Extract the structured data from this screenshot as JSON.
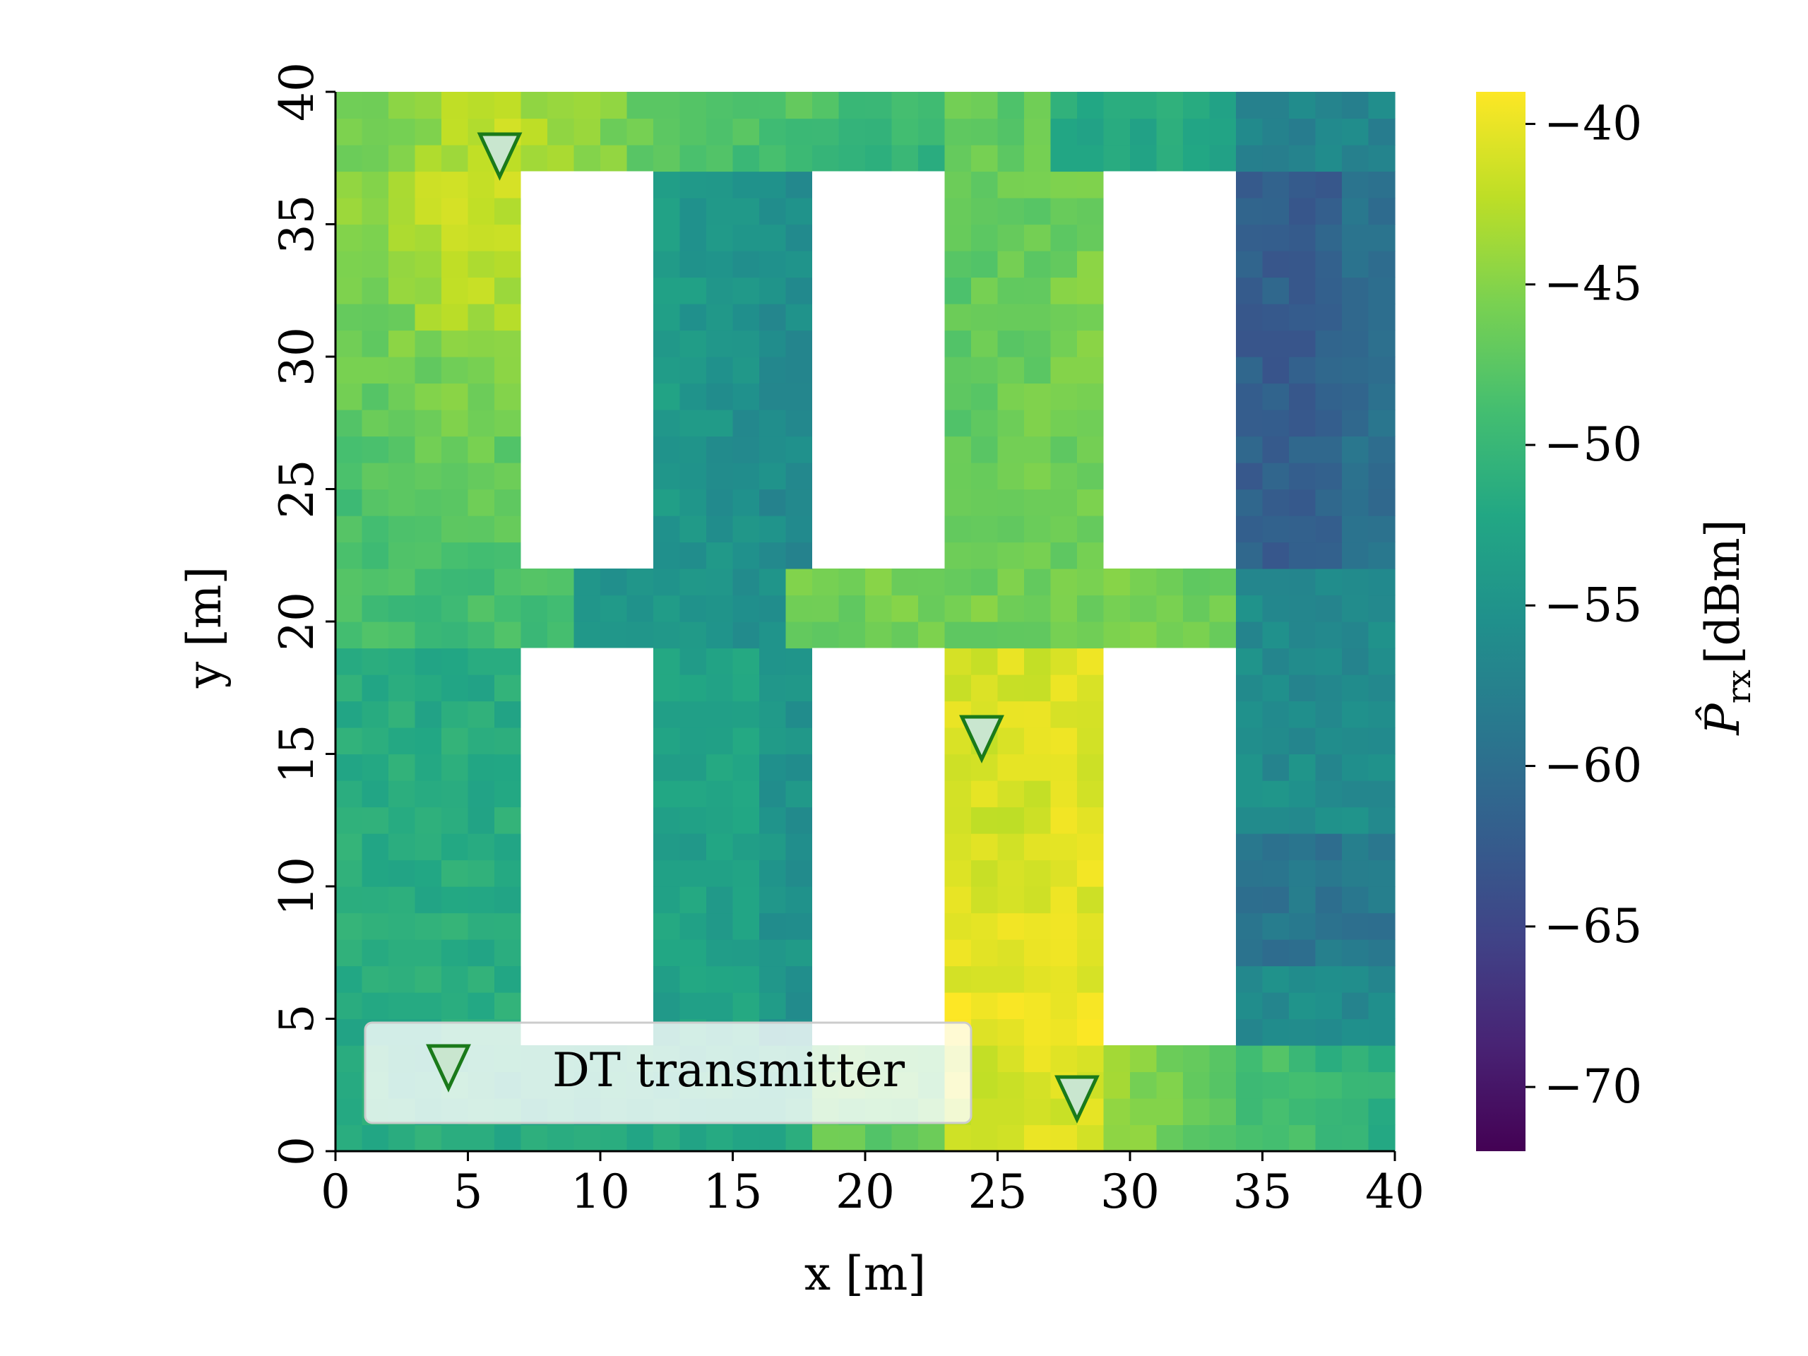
{
  "chart_data": {
    "type": "heatmap",
    "title": "",
    "xlabel": "x [m]",
    "ylabel": "y [m]",
    "colorbar_label": "P̂rx [dBm]",
    "colorbar_label_symbol": "P̂",
    "colorbar_label_sub": "rx",
    "colorbar_label_unit": "[dBm]",
    "colormap": "viridis",
    "xlim": [
      0,
      40
    ],
    "ylim": [
      0,
      40
    ],
    "clim": [
      -72,
      -39
    ],
    "cell_size_m": 1,
    "xticks": [
      0,
      5,
      10,
      15,
      20,
      25,
      30,
      35,
      40
    ],
    "yticks": [
      0,
      5,
      10,
      15,
      20,
      25,
      30,
      35,
      40
    ],
    "colorbar_ticks": [
      -40,
      -45,
      -50,
      -55,
      -60,
      -65,
      -70
    ],
    "xtick_labels": [
      "0",
      "5",
      "10",
      "15",
      "20",
      "25",
      "30",
      "35",
      "40"
    ],
    "ytick_labels": [
      "0",
      "5",
      "10",
      "15",
      "20",
      "25",
      "30",
      "35",
      "40"
    ],
    "colorbar_tick_labels": [
      "−40",
      "−45",
      "−50",
      "−55",
      "−60",
      "−65",
      "−70"
    ],
    "obstacles": [
      {
        "x0": 7,
        "x1": 12,
        "y0": 22,
        "y1": 37
      },
      {
        "x0": 18,
        "x1": 23,
        "y0": 22,
        "y1": 37
      },
      {
        "x0": 29,
        "x1": 34,
        "y0": 22,
        "y1": 37
      },
      {
        "x0": 7,
        "x1": 12,
        "y0": 4,
        "y1": 19
      },
      {
        "x0": 18,
        "x1": 23,
        "y0": 4,
        "y1": 19
      },
      {
        "x0": 29,
        "x1": 34,
        "y0": 4,
        "y1": 19
      }
    ],
    "transmitters": [
      {
        "x": 6.2,
        "y": 37.6
      },
      {
        "x": 24.4,
        "y": 15.6
      },
      {
        "x": 28.0,
        "y": 2.0
      }
    ],
    "legend": {
      "label": "DT transmitter",
      "position": "lower-left"
    },
    "colors": {
      "marker_fill": "#c9e6cf",
      "marker_edge": "#1a7a1a",
      "legend_frame": "#cccccc"
    }
  }
}
